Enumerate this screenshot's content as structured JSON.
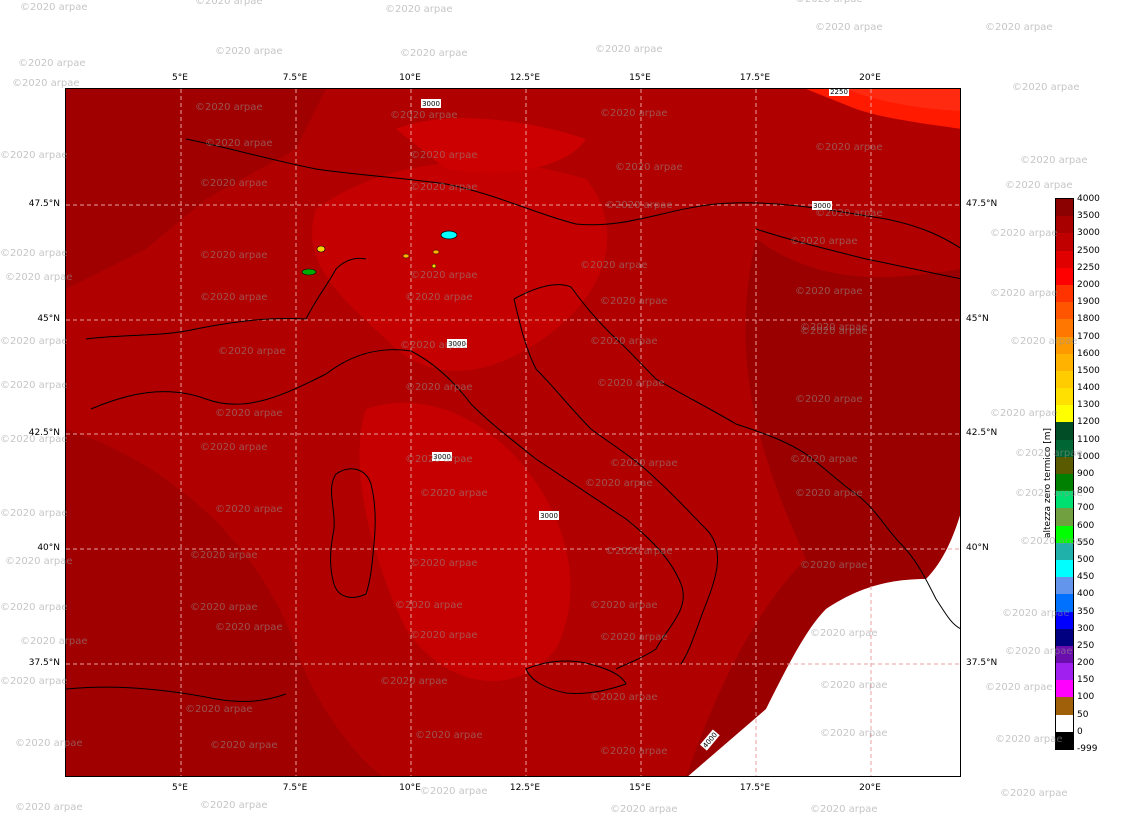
{
  "map": {
    "lon_ticks": [
      "5°E",
      "7.5°E",
      "10°E",
      "12.5°E",
      "15°E",
      "17.5°E",
      "20°E"
    ],
    "lat_ticks": [
      "47.5°N",
      "45°N",
      "42.5°N",
      "40°N",
      "37.5°N"
    ],
    "contour_labels": [
      "3000",
      "2250",
      "3000",
      "3000",
      "3000",
      "3000",
      "4000"
    ]
  },
  "colorbar": {
    "title": "altezza zero termico  [m]",
    "levels": [
      "4000",
      "3500",
      "3000",
      "2500",
      "2250",
      "2000",
      "1900",
      "1800",
      "1700",
      "1600",
      "1500",
      "1400",
      "1300",
      "1200",
      "1100",
      "1000",
      "900",
      "800",
      "700",
      "600",
      "550",
      "500",
      "450",
      "400",
      "350",
      "300",
      "250",
      "200",
      "150",
      "100",
      "50",
      "0",
      "-999"
    ],
    "colors": [
      "#8b0000",
      "#a80000",
      "#c00000",
      "#e00000",
      "#ff0000",
      "#ff3300",
      "#ff5500",
      "#ff7700",
      "#ff9900",
      "#ffb300",
      "#ffcc00",
      "#ffe000",
      "#ffff00",
      "#004d26",
      "#006633",
      "#5a5a00",
      "#008000",
      "#00e070",
      "#70a040",
      "#00ff00",
      "#20b2aa",
      "#00ffff",
      "#6495ed",
      "#0070ff",
      "#0000ff",
      "#000080",
      "#6a0dad",
      "#a020f0",
      "#ff00ff",
      "#a0600a",
      "#ffffff",
      "#000000"
    ]
  },
  "watermark": "©2020 arpae"
}
